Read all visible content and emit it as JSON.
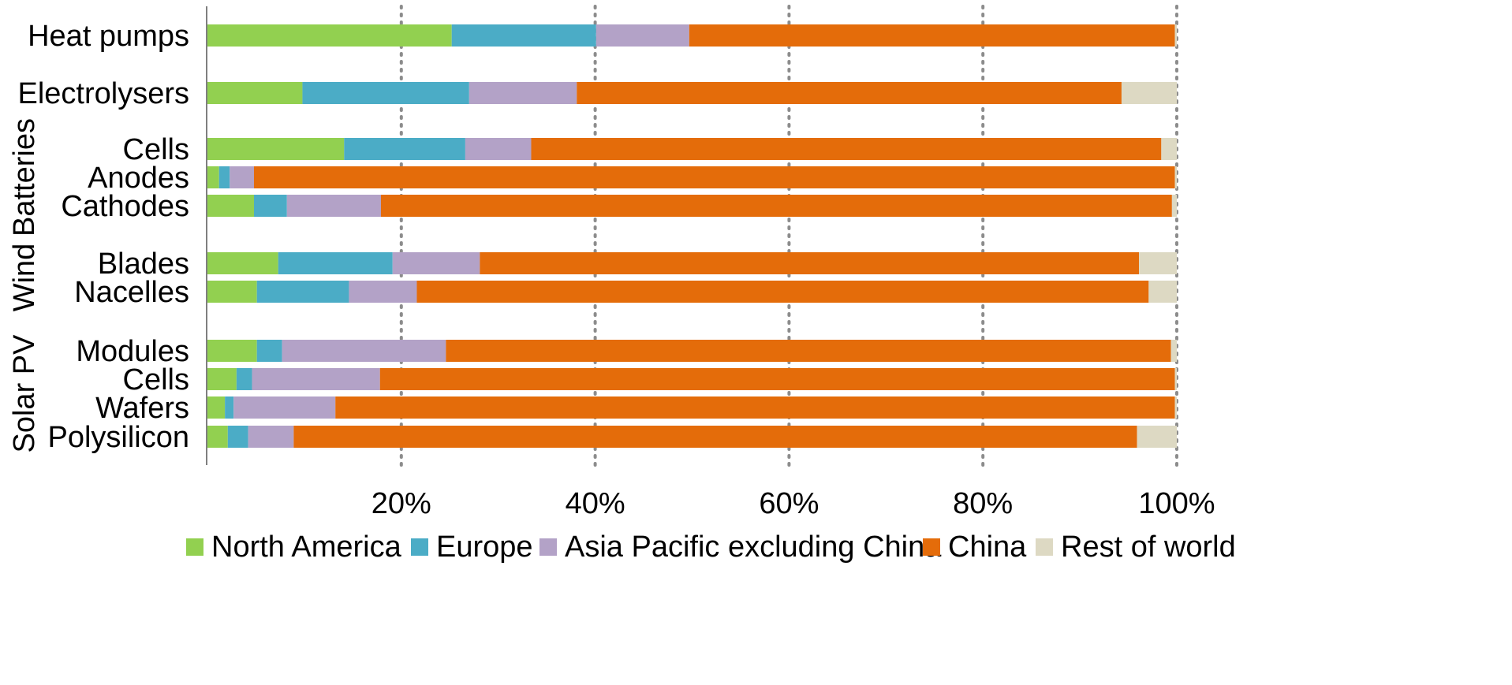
{
  "chart_data": {
    "type": "bar",
    "orientation": "horizontal",
    "stacked": true,
    "percent": true,
    "xlim": [
      0,
      100
    ],
    "x_ticks": [
      "20%",
      "40%",
      "60%",
      "80%",
      "100%"
    ],
    "grid": "vertical dotted",
    "legend_position": "bottom",
    "groups": [
      {
        "label": "",
        "rows": [
          {
            "category": "Heat pumps",
            "values": [
              25.2,
              14.9,
              9.6,
              50.1,
              0.2
            ]
          }
        ]
      },
      {
        "label": "",
        "rows": [
          {
            "category": "Electrolysers",
            "values": [
              9.8,
              17.2,
              11.1,
              56.2,
              5.7
            ]
          }
        ]
      },
      {
        "label": "Batteries",
        "rows": [
          {
            "category": "Cells",
            "values": [
              14.1,
              12.5,
              6.8,
              65.0,
              1.6
            ]
          },
          {
            "category": "Anodes",
            "values": [
              1.2,
              1.1,
              2.5,
              95.0,
              0.2
            ]
          },
          {
            "category": "Cathodes",
            "values": [
              4.8,
              3.4,
              9.7,
              81.6,
              0.5
            ]
          }
        ]
      },
      {
        "label": "Wind",
        "rows": [
          {
            "category": "Blades",
            "values": [
              7.3,
              11.8,
              9.0,
              68.0,
              3.9
            ]
          },
          {
            "category": "Nacelles",
            "values": [
              5.1,
              9.5,
              7.0,
              75.5,
              2.9
            ]
          }
        ]
      },
      {
        "label": "Solar PV",
        "rows": [
          {
            "category": "Modules",
            "values": [
              5.1,
              2.6,
              16.9,
              74.8,
              0.6
            ]
          },
          {
            "category": "Cells",
            "values": [
              3.0,
              1.6,
              13.2,
              82.0,
              0.2
            ]
          },
          {
            "category": "Wafers",
            "values": [
              1.8,
              0.9,
              10.5,
              86.6,
              0.2
            ]
          },
          {
            "category": "Polysilicon",
            "values": [
              2.1,
              2.1,
              4.7,
              87.0,
              4.1
            ]
          }
        ]
      }
    ],
    "series": [
      {
        "name": "North America",
        "color": "#92d050"
      },
      {
        "name": "Europe",
        "color": "#4bacc6"
      },
      {
        "name": "Asia Pacific excluding China",
        "color": "#b3a2c7"
      },
      {
        "name": "China",
        "color": "#e46c0a"
      },
      {
        "name": "Rest of world",
        "color": "#ddd9c3"
      }
    ]
  }
}
